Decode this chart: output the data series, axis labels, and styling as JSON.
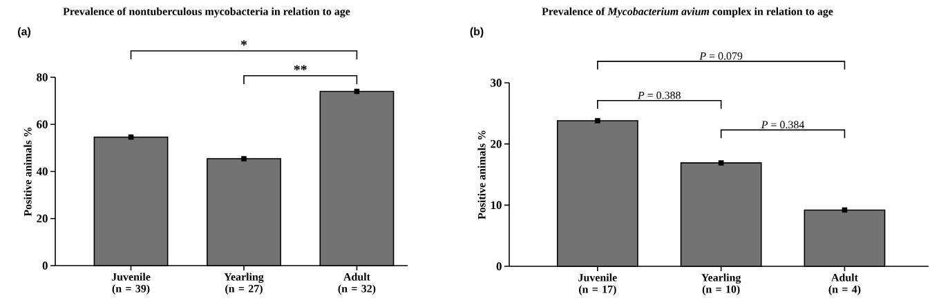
{
  "chart_data": [
    {
      "type": "bar",
      "title": "Prevalence of nontuberculous mycobacteria in relation to age",
      "ylabel": "Positive animals %",
      "categories": [
        "Juvenile (n = 39)",
        "Yearling (n = 27)",
        "Adult (n = 32)"
      ],
      "series": [
        {
          "type": "bar",
          "color": "#737373",
          "values": [
            54.6,
            45.4,
            74.0
          ]
        },
        {
          "type": "scatter",
          "color": "#000000",
          "marker": "square",
          "x": [
            "Juvenile (n = 39)",
            "Yearling (n = 27)",
            "Adult (n = 32)"
          ],
          "values": [
            54.6,
            45.4,
            74.0
          ]
        }
      ],
      "ylim": [
        0,
        80
      ],
      "yticks": [
        0,
        20,
        40,
        60,
        80
      ],
      "annotations": [
        "(a)",
        "*",
        "**"
      ]
    },
    {
      "type": "bar",
      "title": "Prevalence of *Mycobacterium avium* complex in relation to age",
      "ylabel": "Positive animals %",
      "categories": [
        "Juvenile (n = 17)",
        "Yearling (n = 10)",
        "Adult (n = 4)"
      ],
      "series": [
        {
          "type": "bar",
          "color": "#737373",
          "values": [
            23.8,
            16.9,
            9.2
          ]
        },
        {
          "type": "scatter",
          "color": "#000000",
          "marker": "square",
          "x": [
            "Juvenile (n = 17)",
            "Yearling (n = 10)",
            "Adult (n = 4)"
          ],
          "values": [
            23.8,
            16.9,
            9.2
          ]
        }
      ],
      "ylim": [
        0,
        30
      ],
      "yticks": [
        0,
        10,
        20,
        30
      ],
      "annotations": [
        "(b)",
        "*P* = 0.079",
        "*P* = 0.388",
        "*P* = 0.384"
      ]
    }
  ]
}
